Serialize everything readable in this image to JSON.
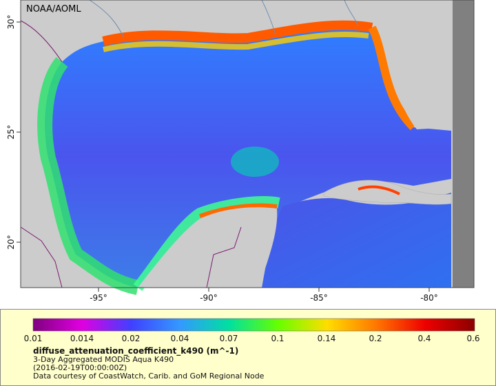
{
  "map": {
    "credit": "NOAA/AOML",
    "lon_ticks": [
      "-95°",
      "-90°",
      "-85°",
      "-80°"
    ],
    "lat_ticks": [
      "30°",
      "25°",
      "20°"
    ]
  },
  "legend": {
    "colorbar_labels": [
      "0.01",
      "0.014",
      "0.02",
      "0.04",
      "0.07",
      "0.1",
      "0.14",
      "0.2",
      "0.4",
      "0.6"
    ],
    "colorbar_colors": [
      "#7f007f",
      "#e000e0",
      "#4040ff",
      "#3399ff",
      "#00e0a0",
      "#66ff00",
      "#ffdd00",
      "#ff7700",
      "#ee0000",
      "#8b0000"
    ],
    "title": "diffuse_attenuation_coefficient_k490 (m^-1)",
    "line1": "3-Day Aggregated MODIS Aqua K490",
    "line2": "(2016-02-19T00:00:00Z)",
    "line3": "Data courtesy of CoastWatch, Carib. and GoM Regional Node"
  },
  "colors": {
    "land": "#cccccc",
    "nodata": "#808080",
    "borders": "#7a1a6e",
    "rivers": "#6f8fb0",
    "legend_bg": "#ffffcc"
  }
}
